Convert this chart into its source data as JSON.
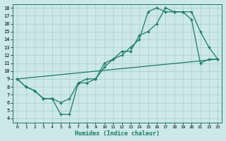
{
  "title": "",
  "xlabel": "Humidex (Indice chaleur)",
  "background_color": "#cce8e8",
  "grid_color": "#aacccc",
  "line_color": "#1a7a6a",
  "xlim": [
    -0.5,
    23.5
  ],
  "ylim": [
    3.5,
    18.5
  ],
  "xticks": [
    0,
    1,
    2,
    3,
    4,
    5,
    6,
    7,
    8,
    9,
    10,
    11,
    12,
    13,
    14,
    15,
    16,
    17,
    18,
    19,
    20,
    21,
    22,
    23
  ],
  "yticks": [
    4,
    5,
    6,
    7,
    8,
    9,
    10,
    11,
    12,
    13,
    14,
    15,
    16,
    17,
    18
  ],
  "line1_x": [
    0,
    1,
    2,
    3,
    4,
    5,
    6,
    7,
    8,
    9,
    10,
    11,
    12,
    13,
    14,
    15,
    16,
    17,
    18,
    19,
    20,
    21,
    22,
    23
  ],
  "line1_y": [
    9,
    8,
    7.5,
    6.5,
    6.5,
    4.5,
    4.5,
    8.5,
    8.5,
    9,
    10.5,
    11.5,
    12.5,
    12.5,
    14.5,
    15,
    16,
    18,
    17.5,
    17.5,
    17.5,
    15,
    13,
    11.5
  ],
  "line2_x": [
    0,
    1,
    2,
    3,
    4,
    5,
    6,
    7,
    8,
    9,
    10,
    11,
    12,
    13,
    14,
    15,
    16,
    17,
    18,
    19,
    20,
    21,
    22,
    23
  ],
  "line2_y": [
    9,
    8,
    7.5,
    6.5,
    6.5,
    6,
    6.5,
    8.5,
    9,
    9,
    11,
    11.5,
    12,
    13,
    14,
    17.5,
    18,
    17.5,
    17.5,
    17.5,
    16.5,
    11,
    11.5,
    11.5
  ],
  "line3_x": [
    0,
    23
  ],
  "line3_y": [
    9,
    11.5
  ],
  "marker": "+",
  "markersize": 3,
  "linewidth": 0.9
}
